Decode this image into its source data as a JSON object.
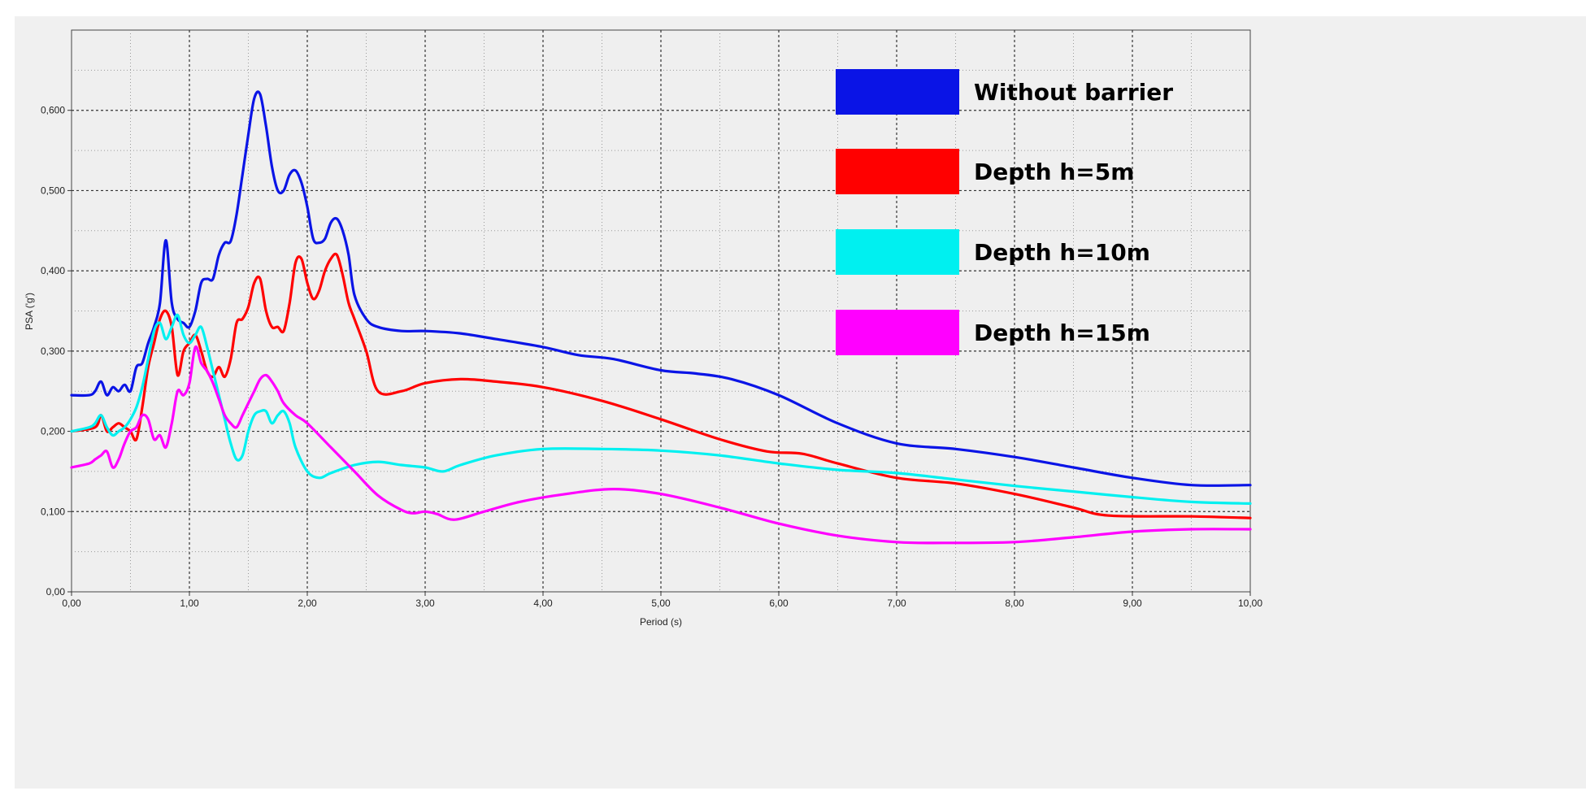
{
  "chart_data": {
    "type": "line",
    "xlabel": "Period (s)",
    "ylabel": "PSA ('g')",
    "xlim": [
      0,
      10
    ],
    "ylim": [
      0,
      0.7
    ],
    "x_ticks": [
      "0,00",
      "1,00",
      "2,00",
      "3,00",
      "4,00",
      "5,00",
      "6,00",
      "7,00",
      "8,00",
      "9,00",
      "10,00"
    ],
    "y_ticks": [
      "0,00",
      "0,100",
      "0,200",
      "0,300",
      "0,400",
      "0,500",
      "0,600"
    ],
    "grid": true,
    "legend_position": "top-right",
    "series": [
      {
        "name": "Without barrier",
        "color": "#0a14e6",
        "x": [
          0,
          0.15,
          0.2,
          0.25,
          0.3,
          0.35,
          0.4,
          0.45,
          0.5,
          0.55,
          0.6,
          0.65,
          0.7,
          0.75,
          0.8,
          0.85,
          0.9,
          0.95,
          1.0,
          1.05,
          1.1,
          1.15,
          1.2,
          1.25,
          1.3,
          1.35,
          1.4,
          1.45,
          1.5,
          1.55,
          1.6,
          1.65,
          1.7,
          1.75,
          1.8,
          1.85,
          1.9,
          1.95,
          2.0,
          2.05,
          2.1,
          2.15,
          2.2,
          2.25,
          2.3,
          2.35,
          2.4,
          2.5,
          2.6,
          2.8,
          3.0,
          3.3,
          3.6,
          4.0,
          4.3,
          4.6,
          5.0,
          5.3,
          5.6,
          6.0,
          6.5,
          7.0,
          7.5,
          8.0,
          8.5,
          9.0,
          9.5,
          10.0
        ],
        "y": [
          0.245,
          0.245,
          0.25,
          0.262,
          0.245,
          0.255,
          0.25,
          0.258,
          0.25,
          0.28,
          0.285,
          0.31,
          0.33,
          0.36,
          0.438,
          0.36,
          0.34,
          0.335,
          0.33,
          0.35,
          0.385,
          0.39,
          0.39,
          0.42,
          0.435,
          0.437,
          0.47,
          0.52,
          0.57,
          0.615,
          0.62,
          0.58,
          0.53,
          0.5,
          0.5,
          0.52,
          0.525,
          0.51,
          0.48,
          0.44,
          0.435,
          0.44,
          0.46,
          0.465,
          0.45,
          0.42,
          0.37,
          0.34,
          0.33,
          0.325,
          0.325,
          0.322,
          0.315,
          0.305,
          0.295,
          0.29,
          0.276,
          0.272,
          0.265,
          0.245,
          0.21,
          0.185,
          0.178,
          0.168,
          0.155,
          0.142,
          0.133,
          0.133
        ]
      },
      {
        "name": "Depth h=5m",
        "color": "#ff0000",
        "x": [
          0,
          0.2,
          0.25,
          0.3,
          0.35,
          0.4,
          0.45,
          0.5,
          0.55,
          0.6,
          0.65,
          0.7,
          0.75,
          0.8,
          0.85,
          0.9,
          0.95,
          1.0,
          1.05,
          1.1,
          1.15,
          1.2,
          1.25,
          1.3,
          1.35,
          1.4,
          1.45,
          1.5,
          1.55,
          1.6,
          1.65,
          1.7,
          1.75,
          1.8,
          1.85,
          1.9,
          1.95,
          2.0,
          2.05,
          2.1,
          2.15,
          2.2,
          2.25,
          2.3,
          2.35,
          2.4,
          2.5,
          2.6,
          2.8,
          3.0,
          3.3,
          3.6,
          4.0,
          4.5,
          5.0,
          5.5,
          5.9,
          6.2,
          6.5,
          7.0,
          7.5,
          8.0,
          8.5,
          8.8,
          9.5,
          10.0
        ],
        "y": [
          0.2,
          0.205,
          0.22,
          0.2,
          0.205,
          0.21,
          0.205,
          0.2,
          0.19,
          0.23,
          0.28,
          0.31,
          0.34,
          0.35,
          0.33,
          0.27,
          0.3,
          0.31,
          0.32,
          0.3,
          0.275,
          0.268,
          0.28,
          0.268,
          0.29,
          0.335,
          0.34,
          0.355,
          0.385,
          0.39,
          0.35,
          0.33,
          0.33,
          0.325,
          0.36,
          0.41,
          0.415,
          0.385,
          0.365,
          0.375,
          0.4,
          0.415,
          0.42,
          0.395,
          0.36,
          0.34,
          0.3,
          0.25,
          0.25,
          0.26,
          0.265,
          0.262,
          0.255,
          0.238,
          0.215,
          0.19,
          0.175,
          0.172,
          0.16,
          0.142,
          0.135,
          0.122,
          0.105,
          0.095,
          0.094,
          0.092
        ]
      },
      {
        "name": "Depth h=10m",
        "color": "#00f0f0",
        "x": [
          0,
          0.15,
          0.2,
          0.25,
          0.3,
          0.35,
          0.4,
          0.45,
          0.5,
          0.55,
          0.6,
          0.65,
          0.7,
          0.75,
          0.8,
          0.85,
          0.9,
          0.95,
          1.0,
          1.05,
          1.1,
          1.15,
          1.2,
          1.25,
          1.3,
          1.35,
          1.4,
          1.45,
          1.5,
          1.55,
          1.6,
          1.65,
          1.7,
          1.75,
          1.8,
          1.85,
          1.9,
          2.0,
          2.1,
          2.2,
          2.4,
          2.6,
          2.8,
          3.0,
          3.15,
          3.3,
          3.6,
          4.0,
          4.5,
          5.0,
          5.5,
          6.0,
          6.5,
          7.0,
          7.5,
          8.0,
          8.5,
          9.0,
          9.5,
          10.0
        ],
        "y": [
          0.2,
          0.205,
          0.21,
          0.22,
          0.205,
          0.195,
          0.2,
          0.205,
          0.215,
          0.23,
          0.255,
          0.29,
          0.325,
          0.335,
          0.315,
          0.33,
          0.345,
          0.32,
          0.31,
          0.32,
          0.33,
          0.305,
          0.275,
          0.245,
          0.215,
          0.185,
          0.165,
          0.17,
          0.2,
          0.22,
          0.225,
          0.225,
          0.21,
          0.22,
          0.225,
          0.21,
          0.18,
          0.15,
          0.142,
          0.148,
          0.158,
          0.162,
          0.158,
          0.155,
          0.15,
          0.158,
          0.17,
          0.178,
          0.178,
          0.176,
          0.17,
          0.16,
          0.152,
          0.148,
          0.14,
          0.132,
          0.125,
          0.118,
          0.112,
          0.11
        ]
      },
      {
        "name": "Depth h=15m",
        "color": "#ff00ff",
        "x": [
          0,
          0.15,
          0.2,
          0.25,
          0.3,
          0.35,
          0.4,
          0.45,
          0.5,
          0.55,
          0.6,
          0.65,
          0.7,
          0.75,
          0.8,
          0.85,
          0.9,
          0.95,
          1.0,
          1.05,
          1.1,
          1.15,
          1.2,
          1.25,
          1.3,
          1.35,
          1.4,
          1.45,
          1.5,
          1.55,
          1.6,
          1.65,
          1.7,
          1.75,
          1.8,
          1.9,
          2.0,
          2.2,
          2.4,
          2.6,
          2.8,
          2.9,
          3.0,
          3.1,
          3.25,
          3.5,
          3.8,
          4.2,
          4.6,
          5.0,
          5.5,
          6.0,
          6.5,
          7.0,
          7.4,
          8.0,
          8.5,
          9.0,
          9.5,
          10.0
        ],
        "y": [
          0.155,
          0.16,
          0.165,
          0.17,
          0.175,
          0.155,
          0.165,
          0.185,
          0.2,
          0.205,
          0.22,
          0.215,
          0.19,
          0.195,
          0.18,
          0.21,
          0.25,
          0.245,
          0.26,
          0.305,
          0.285,
          0.275,
          0.26,
          0.24,
          0.22,
          0.21,
          0.205,
          0.22,
          0.235,
          0.25,
          0.265,
          0.27,
          0.262,
          0.25,
          0.235,
          0.22,
          0.21,
          0.18,
          0.15,
          0.12,
          0.102,
          0.098,
          0.1,
          0.097,
          0.09,
          0.1,
          0.112,
          0.122,
          0.128,
          0.122,
          0.105,
          0.085,
          0.07,
          0.062,
          0.061,
          0.062,
          0.068,
          0.075,
          0.078,
          0.078
        ]
      }
    ]
  }
}
